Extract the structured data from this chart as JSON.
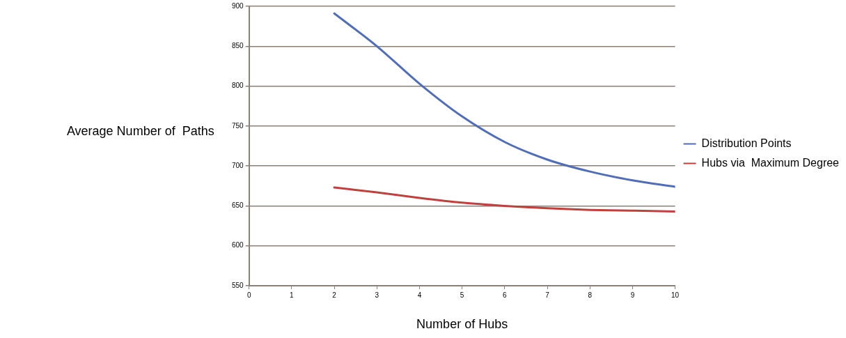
{
  "chart_data": {
    "type": "line",
    "xlabel": "Number of Hubs",
    "ylabel": "Average Number of  Paths",
    "x": [
      2,
      3,
      4,
      5,
      6,
      7,
      8,
      9,
      10
    ],
    "series": [
      {
        "name": "Distribution Points",
        "color": "#4f6db8",
        "values": [
          891,
          850,
          803,
          762,
          730,
          708,
          693,
          682,
          674
        ]
      },
      {
        "name": "Hubs via  Maximum Degree",
        "color": "#c0413c",
        "values": [
          673,
          667,
          660,
          654,
          650,
          647,
          645,
          644,
          643
        ]
      }
    ],
    "xlim": [
      0,
      10
    ],
    "xticks": [
      0,
      1,
      2,
      3,
      4,
      5,
      6,
      7,
      8,
      9,
      10
    ],
    "ylim": [
      550,
      900
    ],
    "yticks": [
      550,
      600,
      650,
      700,
      750,
      800,
      850,
      900
    ],
    "grid": "y",
    "legend": "right",
    "marker": "none",
    "line_style": "solid"
  }
}
